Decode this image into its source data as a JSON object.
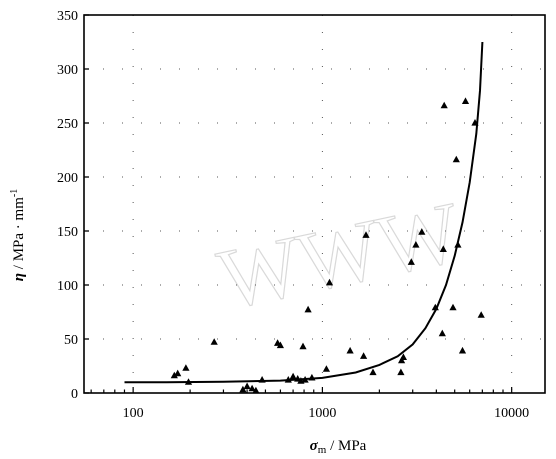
{
  "chart_data": {
    "type": "scatter",
    "xscale": "log",
    "xlim": [
      55,
      15000
    ],
    "ylim": [
      0,
      350
    ],
    "x_ticks": [
      100,
      1000,
      10000
    ],
    "x_tick_labels": [
      "100",
      "1000",
      "10000"
    ],
    "y_ticks": [
      0,
      50,
      100,
      150,
      200,
      250,
      300,
      350
    ],
    "y_tick_labels": [
      "0",
      "50",
      "100",
      "150",
      "200",
      "250",
      "300",
      "350"
    ],
    "xlabel": {
      "symbol": "σ",
      "subscript": "m",
      "unit": " / MPa"
    },
    "ylabel": {
      "symbol": "η",
      "unit": " / MPa · mm",
      "superscript": "-1"
    },
    "grid": "dotted",
    "legend": "none",
    "marker": "triangle",
    "watermark": "WWW",
    "series": [
      {
        "kind": "points",
        "points": [
          [
            165,
            16
          ],
          [
            172,
            18
          ],
          [
            190,
            23
          ],
          [
            196,
            10
          ],
          [
            268,
            47
          ],
          [
            380,
            3
          ],
          [
            400,
            6
          ],
          [
            425,
            4
          ],
          [
            445,
            2
          ],
          [
            480,
            12
          ],
          [
            580,
            46
          ],
          [
            600,
            44
          ],
          [
            660,
            12
          ],
          [
            700,
            15
          ],
          [
            740,
            13
          ],
          [
            770,
            11
          ],
          [
            810,
            12
          ],
          [
            790,
            43
          ],
          [
            840,
            77
          ],
          [
            880,
            14
          ],
          [
            1050,
            22
          ],
          [
            1090,
            102
          ],
          [
            1400,
            39
          ],
          [
            1650,
            34
          ],
          [
            1700,
            146
          ],
          [
            1850,
            19
          ],
          [
            2600,
            19
          ],
          [
            2620,
            30
          ],
          [
            2680,
            33
          ],
          [
            2950,
            121
          ],
          [
            3120,
            137
          ],
          [
            3350,
            149
          ],
          [
            3950,
            79
          ],
          [
            4300,
            55
          ],
          [
            4350,
            133
          ],
          [
            4400,
            266
          ],
          [
            4900,
            79
          ],
          [
            5100,
            216
          ],
          [
            5200,
            137
          ],
          [
            5500,
            39
          ],
          [
            5700,
            270
          ],
          [
            6400,
            250
          ],
          [
            6900,
            72
          ]
        ]
      },
      {
        "kind": "line",
        "points": [
          [
            90,
            10
          ],
          [
            150,
            10
          ],
          [
            300,
            10.5
          ],
          [
            600,
            11.5
          ],
          [
            1000,
            14
          ],
          [
            1500,
            19
          ],
          [
            2000,
            26
          ],
          [
            2500,
            34
          ],
          [
            3000,
            45
          ],
          [
            3500,
            60
          ],
          [
            4000,
            78
          ],
          [
            4500,
            100
          ],
          [
            5000,
            127
          ],
          [
            5500,
            158
          ],
          [
            6000,
            195
          ],
          [
            6500,
            240
          ],
          [
            6800,
            280
          ],
          [
            7000,
            325
          ]
        ]
      }
    ]
  }
}
